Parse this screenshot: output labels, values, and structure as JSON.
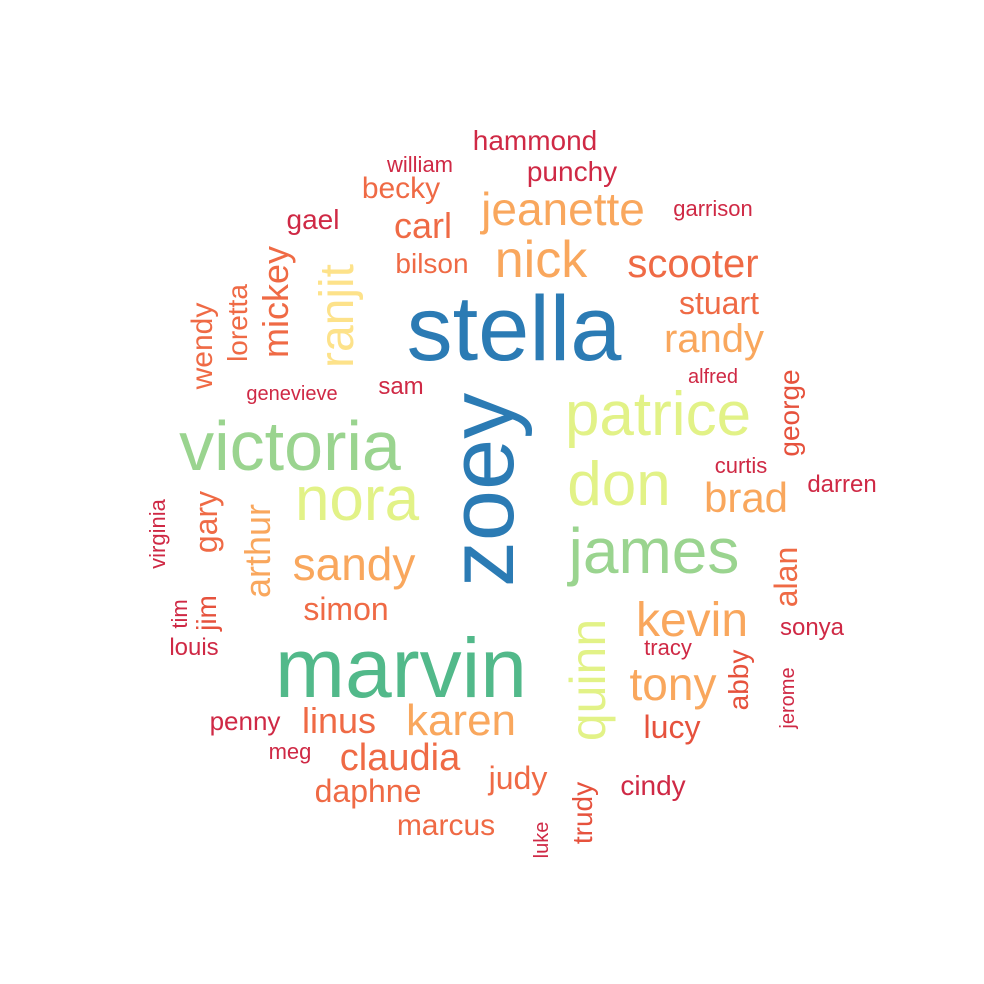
{
  "wordcloud": {
    "words": [
      {
        "text": "stella",
        "color": "#2b7bb4"
      },
      {
        "text": "zoey",
        "color": "#2b7bb4"
      },
      {
        "text": "marvin",
        "color": "#52b98a"
      },
      {
        "text": "victoria",
        "color": "#9ad48f"
      },
      {
        "text": "james",
        "color": "#9ad48f"
      },
      {
        "text": "patrice",
        "color": "#e2f287"
      },
      {
        "text": "don",
        "color": "#e2f287"
      },
      {
        "text": "nora",
        "color": "#e2f287"
      },
      {
        "text": "quinn",
        "color": "#e2f287"
      },
      {
        "text": "ranjit",
        "color": "#fde28a"
      },
      {
        "text": "nick",
        "color": "#f9a75d"
      },
      {
        "text": "jeanette",
        "color": "#f9a75d"
      },
      {
        "text": "kevin",
        "color": "#f9a75d"
      },
      {
        "text": "tony",
        "color": "#f9a75d"
      },
      {
        "text": "karen",
        "color": "#f9a75d"
      },
      {
        "text": "sandy",
        "color": "#f9a75d"
      },
      {
        "text": "arthur",
        "color": "#f9a75d"
      },
      {
        "text": "randy",
        "color": "#f9a75d"
      },
      {
        "text": "brad",
        "color": "#f9a75d"
      },
      {
        "text": "scooter",
        "color": "#ef6a45"
      },
      {
        "text": "claudia",
        "color": "#ef6a45"
      },
      {
        "text": "carl",
        "color": "#ef6a45"
      },
      {
        "text": "mickey",
        "color": "#ef6a45"
      },
      {
        "text": "linus",
        "color": "#ef6a45"
      },
      {
        "text": "stuart",
        "color": "#ef6a45"
      },
      {
        "text": "simon",
        "color": "#ef6a45"
      },
      {
        "text": "judy",
        "color": "#ef6a45"
      },
      {
        "text": "alan",
        "color": "#ef6a45"
      },
      {
        "text": "gary",
        "color": "#ef6a45"
      },
      {
        "text": "becky",
        "color": "#ef6a45"
      },
      {
        "text": "bilson",
        "color": "#ef6a45"
      },
      {
        "text": "loretta",
        "color": "#ef6a45"
      },
      {
        "text": "wendy",
        "color": "#ef6a45"
      },
      {
        "text": "daphne",
        "color": "#ef6a45"
      },
      {
        "text": "marcus",
        "color": "#ef6a45"
      },
      {
        "text": "lucy",
        "color": "#e6523d"
      },
      {
        "text": "abby",
        "color": "#e6523d"
      },
      {
        "text": "george",
        "color": "#e6523d"
      },
      {
        "text": "jim",
        "color": "#e6523d"
      },
      {
        "text": "trudy",
        "color": "#e6523d"
      },
      {
        "text": "hammond",
        "color": "#cf2945"
      },
      {
        "text": "punchy",
        "color": "#cf2945"
      },
      {
        "text": "gael",
        "color": "#cf2945"
      },
      {
        "text": "sam",
        "color": "#cf2945"
      },
      {
        "text": "penny",
        "color": "#cf2945"
      },
      {
        "text": "cindy",
        "color": "#cf2945"
      },
      {
        "text": "darren",
        "color": "#cf2945"
      },
      {
        "text": "sonya",
        "color": "#cf2945"
      },
      {
        "text": "curtis",
        "color": "#cf2945"
      },
      {
        "text": "garrison",
        "color": "#cf2945"
      },
      {
        "text": "william",
        "color": "#cf2945"
      },
      {
        "text": "louis",
        "color": "#cf2945"
      },
      {
        "text": "tim",
        "color": "#cf2945"
      },
      {
        "text": "virginia",
        "color": "#cf2945"
      },
      {
        "text": "genevieve",
        "color": "#cf2945"
      },
      {
        "text": "alfred",
        "color": "#cf2945"
      },
      {
        "text": "tracy",
        "color": "#cf2945"
      },
      {
        "text": "meg",
        "color": "#cf2945"
      },
      {
        "text": "luke",
        "color": "#cf2945"
      },
      {
        "text": "jerome",
        "color": "#cf2945"
      }
    ]
  }
}
